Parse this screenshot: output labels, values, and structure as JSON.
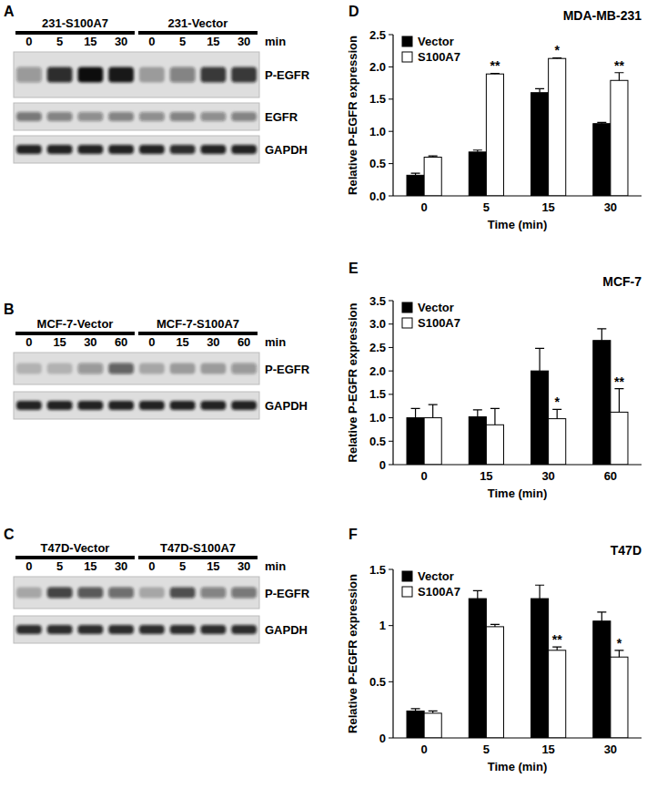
{
  "panel_labels": [
    "A",
    "B",
    "C",
    "D",
    "E",
    "F"
  ],
  "blots": [
    {
      "groups": [
        {
          "label": "231-S100A7",
          "times": [
            "0",
            "5",
            "15",
            "30"
          ]
        },
        {
          "label": "231-Vector",
          "times": [
            "0",
            "5",
            "15",
            "30"
          ]
        }
      ],
      "unit": "min",
      "rows": [
        {
          "label": "P-EGFR",
          "intensities": [
            0.35,
            0.85,
            1.0,
            0.95,
            0.3,
            0.45,
            0.8,
            0.8
          ]
        },
        {
          "label": "EGFR",
          "intensities": [
            0.5,
            0.45,
            0.4,
            0.45,
            0.4,
            0.45,
            0.4,
            0.45
          ]
        },
        {
          "label": "GAPDH",
          "intensities": [
            0.9,
            0.9,
            0.9,
            0.9,
            0.9,
            0.85,
            0.9,
            0.9
          ]
        }
      ]
    },
    {
      "groups": [
        {
          "label": "MCF-7-Vector",
          "times": [
            "0",
            "15",
            "30",
            "60"
          ]
        },
        {
          "label": "MCF-7-S100A7",
          "times": [
            "0",
            "15",
            "30",
            "60"
          ]
        }
      ],
      "unit": "min",
      "rows": [
        {
          "label": "P-EGFR",
          "intensities": [
            0.2,
            0.2,
            0.35,
            0.6,
            0.25,
            0.3,
            0.3,
            0.35
          ]
        },
        {
          "label": "GAPDH",
          "intensities": [
            0.9,
            0.9,
            0.9,
            0.9,
            0.9,
            0.9,
            0.9,
            0.9
          ]
        }
      ]
    },
    {
      "groups": [
        {
          "label": "T47D-Vector",
          "times": [
            "0",
            "5",
            "15",
            "30"
          ]
        },
        {
          "label": "T47D-S100A7",
          "times": [
            "0",
            "5",
            "15",
            "30"
          ]
        }
      ],
      "unit": "min",
      "rows": [
        {
          "label": "P-EGFR",
          "intensities": [
            0.25,
            0.75,
            0.65,
            0.55,
            0.25,
            0.7,
            0.45,
            0.5
          ]
        },
        {
          "label": "GAPDH",
          "intensities": [
            0.85,
            0.85,
            0.85,
            0.85,
            0.85,
            0.85,
            0.85,
            0.85
          ]
        }
      ]
    }
  ],
  "chart_data": [
    {
      "type": "bar",
      "title": "MDA-MB-231",
      "x_label": "Time (min)",
      "y_label": "Relative P-EGFR expression",
      "categories": [
        "0",
        "5",
        "15",
        "30"
      ],
      "series": [
        {
          "name": "Vector",
          "color": "#000000",
          "values": [
            0.32,
            0.68,
            1.6,
            1.12
          ],
          "error": [
            0.03,
            0.03,
            0.06,
            0.02
          ],
          "significance": [
            null,
            null,
            null,
            null
          ]
        },
        {
          "name": "S100A7",
          "color": "#ffffff",
          "values": [
            0.6,
            1.89,
            2.13,
            1.79
          ],
          "error": [
            0.02,
            0.01,
            0.01,
            0.12
          ],
          "significance": [
            null,
            "**",
            "*",
            "**"
          ]
        }
      ],
      "ylim": [
        0,
        2.5
      ],
      "yticks": [
        {
          "value": 0,
          "label": "0.0"
        },
        0.5,
        {
          "value": 1,
          "label": "1.0"
        },
        1.5,
        {
          "value": 2,
          "label": "2.0"
        },
        2.5
      ],
      "grid": false,
      "legend": "upper left"
    },
    {
      "type": "bar",
      "title": "MCF-7",
      "x_label": "Time (min)",
      "y_label": "Relative P-EGFR expression",
      "categories": [
        "0",
        "15",
        "30",
        "60"
      ],
      "series": [
        {
          "name": "Vector",
          "color": "#000000",
          "values": [
            1.0,
            1.02,
            2.0,
            2.65
          ],
          "error": [
            0.2,
            0.15,
            0.48,
            0.25
          ],
          "significance": [
            null,
            null,
            null,
            null
          ]
        },
        {
          "name": "S100A7",
          "color": "#ffffff",
          "values": [
            1.0,
            0.85,
            0.98,
            1.12
          ],
          "error": [
            0.28,
            0.35,
            0.2,
            0.5
          ],
          "significance": [
            null,
            null,
            "*",
            "**"
          ]
        }
      ],
      "ylim": [
        0,
        3.5
      ],
      "yticks": [
        0,
        0.5,
        {
          "value": 1,
          "label": "1.0"
        },
        1.5,
        {
          "value": 2,
          "label": "2.0"
        },
        2.5,
        {
          "value": 3,
          "label": "3.0"
        },
        3.5
      ],
      "grid": false,
      "legend": "upper left"
    },
    {
      "type": "bar",
      "title": "T47D",
      "x_label": "Time (min)",
      "y_label": "Relative P-EGFR expression",
      "categories": [
        "0",
        "5",
        "15",
        "30"
      ],
      "series": [
        {
          "name": "Vector",
          "color": "#000000",
          "values": [
            0.24,
            1.24,
            1.24,
            1.04
          ],
          "error": [
            0.02,
            0.07,
            0.12,
            0.08
          ],
          "significance": [
            null,
            null,
            null,
            null
          ]
        },
        {
          "name": "S100A7",
          "color": "#ffffff",
          "values": [
            0.22,
            0.99,
            0.78,
            0.72
          ],
          "error": [
            0.02,
            0.02,
            0.03,
            0.06
          ],
          "significance": [
            null,
            null,
            "**",
            "*"
          ]
        }
      ],
      "ylim": [
        0,
        1.5
      ],
      "yticks": [
        0,
        0.5,
        1,
        1.5
      ],
      "grid": false,
      "legend": "upper left"
    }
  ]
}
